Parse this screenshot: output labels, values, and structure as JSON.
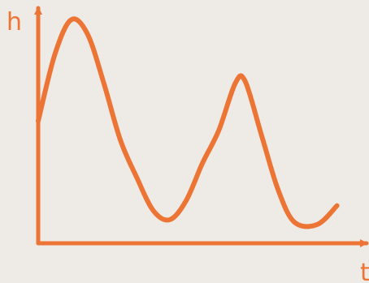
{
  "colors": {
    "background": "#eeebe7",
    "stroke": "#ec7535"
  },
  "chart_data": {
    "type": "line",
    "title": "",
    "xlabel": "t",
    "ylabel": "h",
    "xlim": [
      0,
      10
    ],
    "ylim": [
      0,
      10
    ],
    "grid": false,
    "legend": "none",
    "tick_labels": false,
    "x": [
      0.0,
      0.5,
      1.0,
      1.5,
      2.0,
      2.5,
      3.0,
      3.5,
      4.0,
      4.5,
      5.0,
      5.5,
      6.0,
      6.3,
      6.8,
      7.3,
      7.8,
      8.5,
      9.1
    ],
    "series": [
      {
        "values": [
          5.2,
          8.0,
          9.5,
          8.9,
          6.8,
          4.4,
          2.8,
          1.4,
          1.0,
          1.8,
          3.4,
          4.8,
          6.8,
          6.9,
          4.6,
          2.3,
          0.9,
          0.8,
          1.6
        ]
      }
    ]
  }
}
